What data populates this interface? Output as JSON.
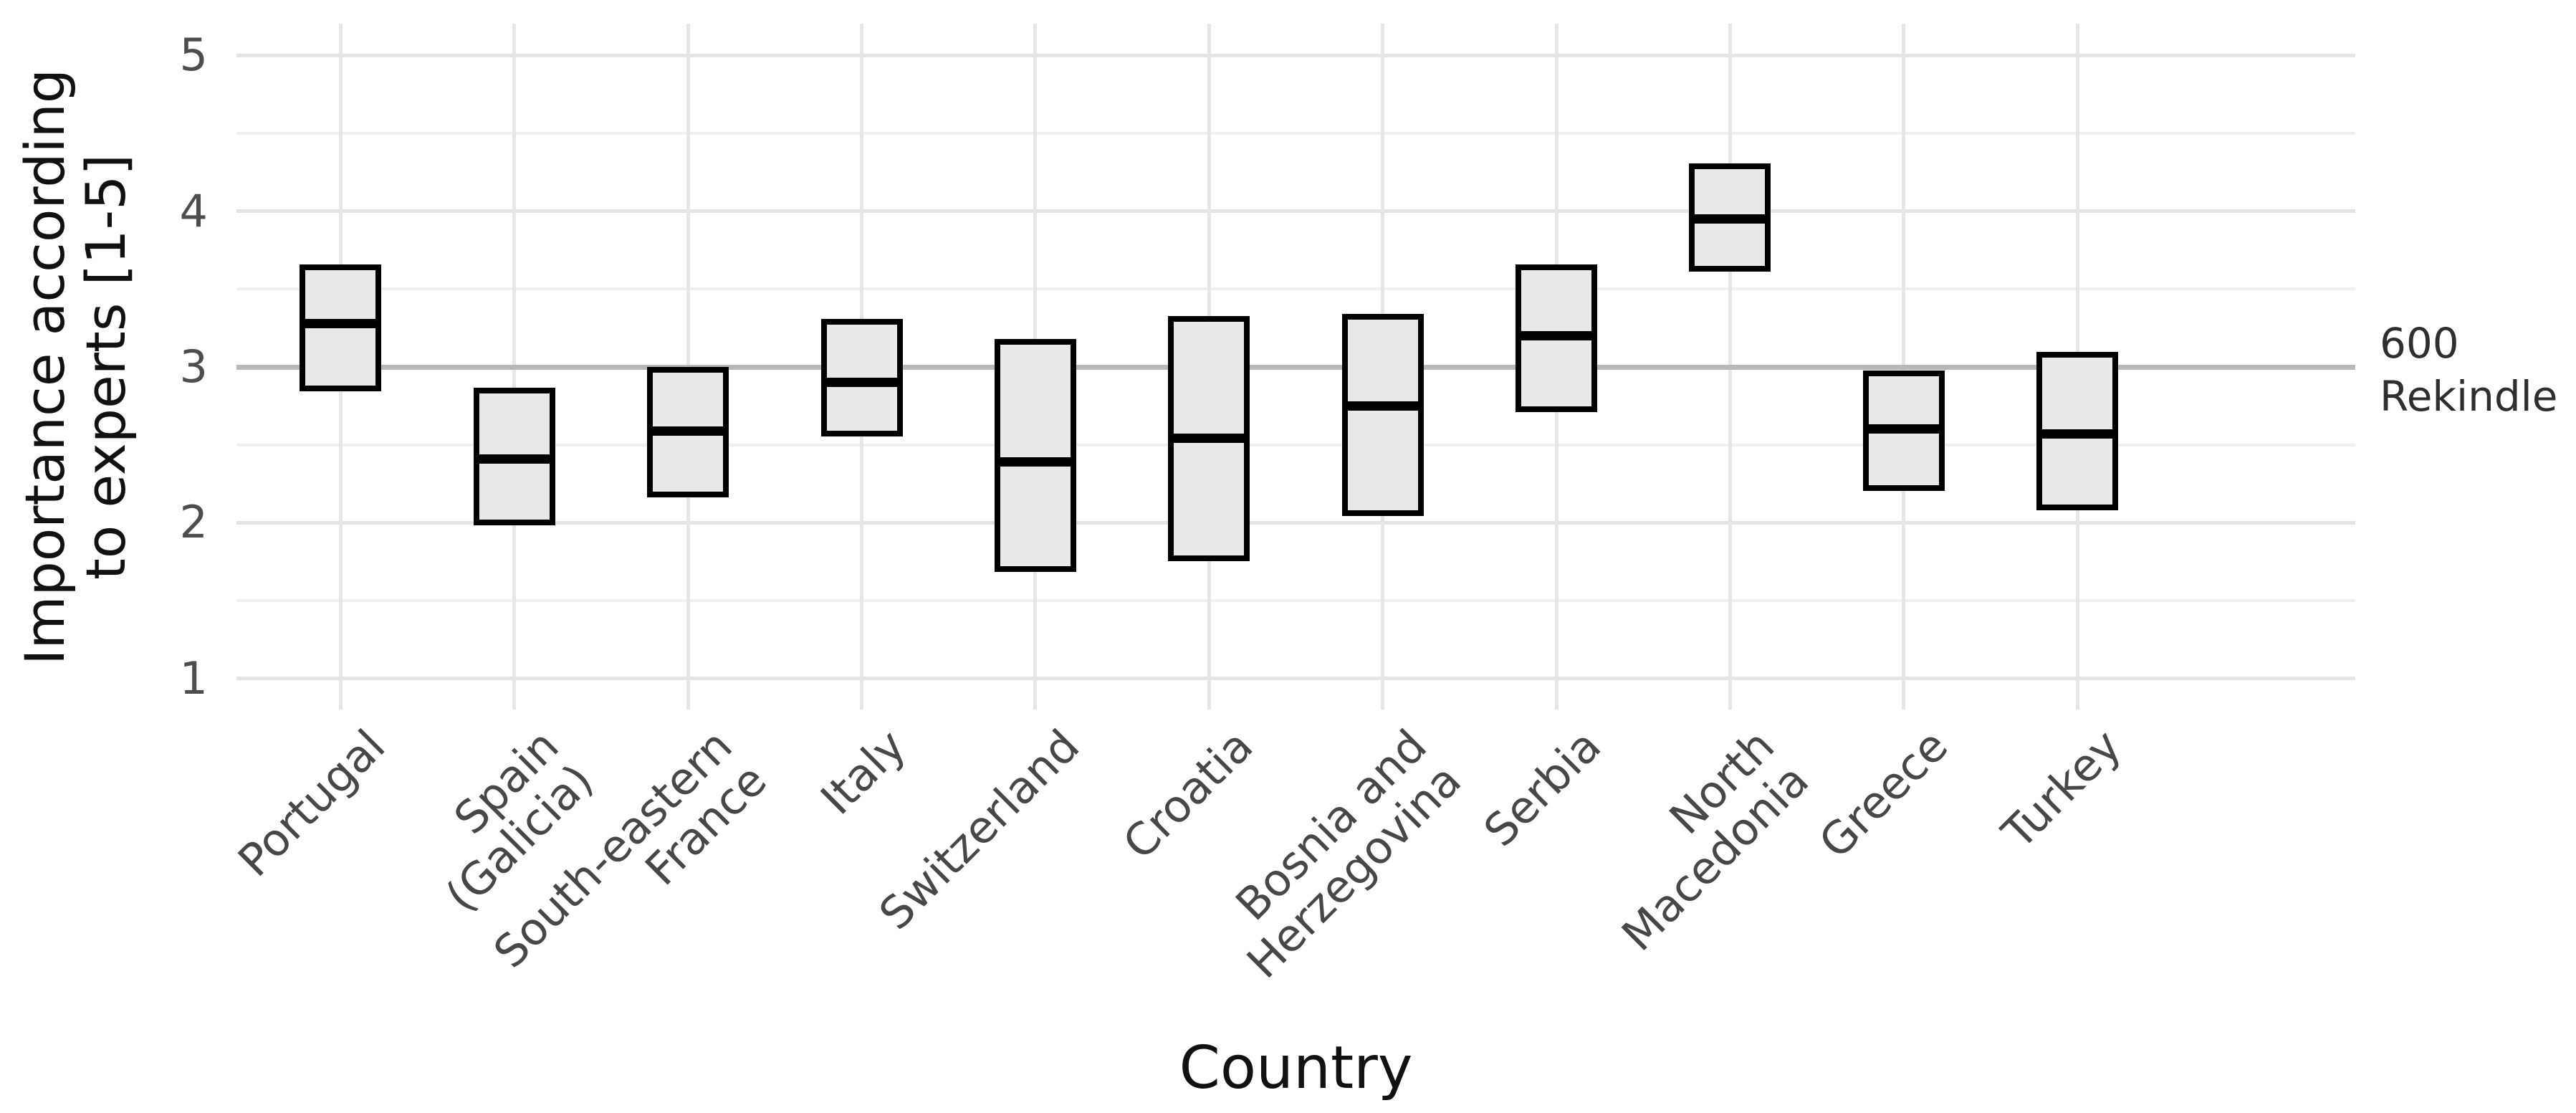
{
  "chart_data": {
    "type": "crossbar",
    "type_note": "boxplot-style crossbar: filled box from lower to upper bound with thick black median line, no whiskers",
    "title": "",
    "xlabel": "Country",
    "ylabel": "Importance according\nto experts [1-5]",
    "ylim": [
      1,
      5
    ],
    "y_major_ticks": [
      1,
      2,
      3,
      4,
      5
    ],
    "y_minor_gridlines": [
      1.5,
      2.5,
      3.5,
      4.5
    ],
    "reference_line_y": 3,
    "legend_position": "none",
    "grid": "on",
    "categories": [
      "Portugal",
      "Spain\n(Galicia)",
      "South-eastern\nFrance",
      "Italy",
      "Switzerland",
      "Croatia",
      "Bosnia and\nHerzegovina",
      "Serbia",
      "North\nMacedonia",
      "Greece",
      "Turkey"
    ],
    "series": [
      {
        "name": "lower",
        "values": [
          2.86,
          2.0,
          2.18,
          2.57,
          1.7,
          1.77,
          2.06,
          2.73,
          3.63,
          2.22,
          2.1
        ]
      },
      {
        "name": "median",
        "values": [
          3.28,
          2.41,
          2.59,
          2.9,
          2.39,
          2.54,
          2.75,
          3.2,
          3.95,
          2.6,
          2.57
        ]
      },
      {
        "name": "upper",
        "values": [
          3.64,
          2.85,
          2.98,
          3.29,
          3.16,
          3.31,
          3.32,
          3.64,
          4.29,
          2.96,
          3.08
        ]
      }
    ]
  },
  "y_axis": {
    "title": "Importance according\nto experts [1-5]",
    "tick_labels": [
      "5",
      "4",
      "3",
      "2",
      "1"
    ],
    "tick_values": [
      5,
      4,
      3,
      2,
      1
    ]
  },
  "x_axis": {
    "title": "Country"
  },
  "annotation": {
    "line1": "600",
    "line2": "Rekindle"
  },
  "colors": {
    "background": "#ffffff",
    "box_fill": "#e8e8e8",
    "box_border": "#000000",
    "median_line": "#000000",
    "grid_major": "#e4e4e4",
    "grid_minor": "#f0f0f0",
    "grid_vertical": "#e6e6e6",
    "reference_line": "#b8b8b8",
    "tick_text": "#4d4d4d",
    "title_text": "#111111",
    "annotation_text": "#2e2e2e"
  }
}
